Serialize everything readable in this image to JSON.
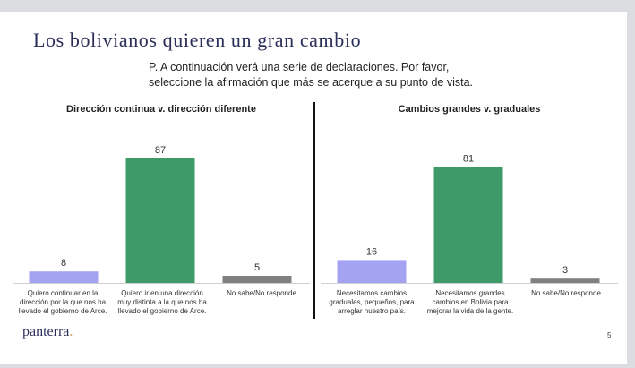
{
  "slide": {
    "title": "Los bolivianos quieren un gran cambio",
    "question_line1": "P. A continuación verá una serie de declaraciones. Por favor,",
    "question_line2": "seleccione la afirmación que más se acerque a su punto de vista.",
    "logo": "panterra",
    "logo_dot": ".",
    "page_number": "5"
  },
  "colors": {
    "blue": "#a3a3f2",
    "green": "#3f9a6a",
    "gray": "#808080",
    "title": "#2a2f59"
  },
  "chart_data": [
    {
      "type": "bar",
      "title": "Dirección continua v. dirección diferente",
      "categories": [
        "Quiero continuar en la dirección por la que nos ha llevado el gobierno de Arce.",
        "Quiero ir en una dirección muy distinta a la que nos ha llevado el gobierno de Arce.",
        "No sabe/No responde"
      ],
      "values": [
        8,
        87,
        5
      ],
      "colors": [
        "#a3a3f2",
        "#3f9a6a",
        "#808080"
      ],
      "xlabel": "",
      "ylabel": "",
      "ylim": [
        0,
        100
      ]
    },
    {
      "type": "bar",
      "title": "Cambios grandes v. graduales",
      "categories": [
        "Necesitamos cambios graduales, pequeños, para arreglar nuestro país.",
        "Necesitamos grandes cambios en Bolivia para mejorar la vida de la gente.",
        "No sabe/No responde"
      ],
      "values": [
        16,
        81,
        3
      ],
      "colors": [
        "#a3a3f2",
        "#3f9a6a",
        "#808080"
      ],
      "xlabel": "",
      "ylabel": "",
      "ylim": [
        0,
        100
      ]
    }
  ]
}
